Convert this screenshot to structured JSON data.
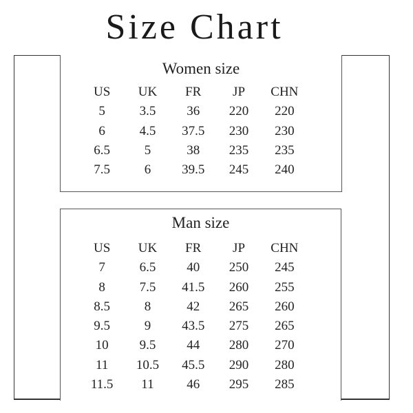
{
  "title": "Size Chart",
  "women": {
    "heading": "Women size",
    "columns": [
      "US",
      "UK",
      "FR",
      "JP",
      "CHN"
    ],
    "rows": [
      [
        "5",
        "3.5",
        "36",
        "220",
        "220"
      ],
      [
        "6",
        "4.5",
        "37.5",
        "230",
        "230"
      ],
      [
        "6.5",
        "5",
        "38",
        "235",
        "235"
      ],
      [
        "7.5",
        "6",
        "39.5",
        "245",
        "240"
      ]
    ]
  },
  "man": {
    "heading": "Man size",
    "columns": [
      "US",
      "UK",
      "FR",
      "JP",
      "CHN"
    ],
    "rows": [
      [
        "7",
        "6.5",
        "40",
        "250",
        "245"
      ],
      [
        "8",
        "7.5",
        "41.5",
        "260",
        "255"
      ],
      [
        "8.5",
        "8",
        "42",
        "265",
        "260"
      ],
      [
        "9.5",
        "9",
        "43.5",
        "275",
        "265"
      ],
      [
        "10",
        "9.5",
        "44",
        "280",
        "270"
      ],
      [
        "11",
        "10.5",
        "45.5",
        "290",
        "280"
      ],
      [
        "11.5",
        "11",
        "46",
        "295",
        "285"
      ]
    ]
  }
}
